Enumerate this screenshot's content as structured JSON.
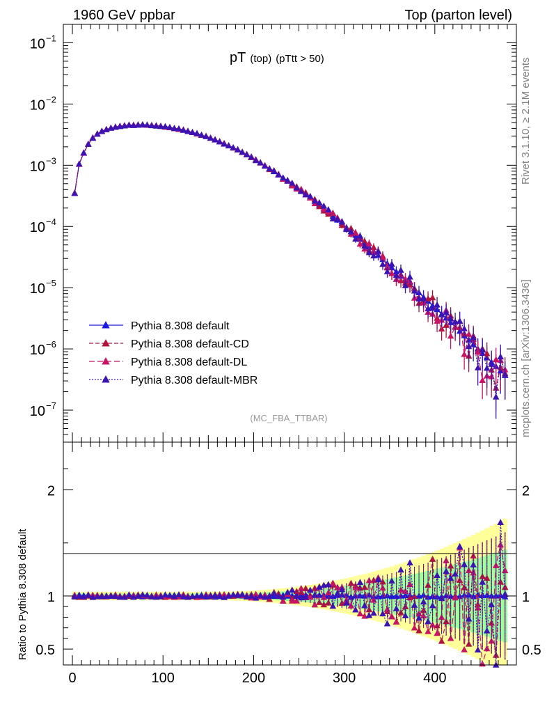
{
  "header": {
    "left": "1960 GeV ppbar",
    "right": "Top (parton level)"
  },
  "side_labels": {
    "rivet": "Rivet 3.1.10, ≥ 2.1M events",
    "mcplots": "mcplots.cern.ch [arXiv:1306.3436]"
  },
  "plot_title": {
    "main": "pT",
    "sub1": "(top)",
    "sub2": "(pTtt > 50)"
  },
  "analysis_id": "(MC_FBA_TTBAR)",
  "ratio_ylabel": "Ratio to Pythia 8.308 default",
  "colors": {
    "default": "#1a1adc",
    "cd": "#b0143c",
    "dl": "#c81464",
    "mbr": "#3c14b4",
    "band_yellow": "#ffff99",
    "band_green": "#99ff99"
  },
  "chart_data": [
    {
      "type": "line",
      "scale": "log",
      "xlim": [
        -10,
        490
      ],
      "ylim": [
        3e-08,
        0.2
      ],
      "y_ticks": [
        {
          "label": "10",
          "exp": "−1",
          "value": 0.1
        },
        {
          "label": "10",
          "exp": "−2",
          "value": 0.01
        },
        {
          "label": "10",
          "exp": "−3",
          "value": 0.001
        },
        {
          "label": "10",
          "exp": "−4",
          "value": 0.0001
        },
        {
          "label": "10",
          "exp": "−5",
          "value": 1e-05
        },
        {
          "label": "10",
          "exp": "−6",
          "value": 1e-06
        },
        {
          "label": "10",
          "exp": "−7",
          "value": 1e-07
        }
      ],
      "x": [
        2.5,
        7.5,
        12.5,
        17.5,
        22.5,
        27.5,
        32.5,
        37.5,
        42.5,
        47.5,
        52.5,
        57.5,
        62.5,
        67.5,
        72.5,
        77.5,
        82.5,
        87.5,
        92.5,
        97.5,
        102.5,
        107.5,
        112.5,
        117.5,
        122.5,
        127.5,
        132.5,
        137.5,
        142.5,
        147.5,
        152.5,
        157.5,
        162.5,
        167.5,
        172.5,
        177.5,
        182.5,
        187.5,
        192.5,
        197.5,
        202.5,
        207.5,
        212.5,
        217.5,
        222.5,
        227.5,
        232.5,
        237.5,
        242.5,
        247.5,
        252.5,
        257.5,
        262.5,
        267.5,
        272.5,
        277.5,
        282.5,
        287.5,
        292.5,
        297.5,
        302.5,
        307.5,
        312.5,
        317.5,
        322.5,
        327.5,
        332.5,
        337.5,
        342.5,
        347.5,
        352.5,
        357.5,
        362.5,
        367.5,
        372.5,
        377.5,
        382.5,
        387.5,
        392.5,
        397.5,
        402.5,
        407.5,
        412.5,
        417.5,
        422.5,
        427.5,
        432.5,
        437.5,
        442.5,
        447.5,
        452.5,
        457.5,
        462.5,
        467.5,
        472.5,
        477.5
      ],
      "series": [
        {
          "name": "Pythia 8.308 default",
          "color_key": "default",
          "dash": "",
          "values": [
            0.00035,
            0.00105,
            0.0016,
            0.0022,
            0.0028,
            0.00325,
            0.0036,
            0.00385,
            0.00405,
            0.0042,
            0.00435,
            0.00445,
            0.0045,
            0.00452,
            0.00455,
            0.00455,
            0.00452,
            0.00448,
            0.00442,
            0.00435,
            0.00425,
            0.00415,
            0.00402,
            0.0039,
            0.00375,
            0.00362,
            0.00345,
            0.0033,
            0.00312,
            0.00295,
            0.00278,
            0.0026,
            0.00242,
            0.00225,
            0.00208,
            0.00192,
            0.00178,
            0.00162,
            0.0015,
            0.00136,
            0.00122,
            0.0011,
            0.00098,
            0.00088,
            0.00079,
            0.0007,
            0.000625,
            0.00055,
            0.000485,
            0.00043,
            0.00038,
            0.000335,
            0.000295,
            0.000258,
            0.000225,
            0.000196,
            0.00017,
            0.000148,
            0.000128,
            0.000112,
            9.6e-05,
            8.3e-05,
            7.2e-05,
            6.2e-05,
            5.3e-05,
            4.6e-05,
            3.95e-05,
            3.4e-05,
            2.9e-05,
            2.48e-05,
            2.12e-05,
            1.82e-05,
            1.55e-05,
            1.33e-05,
            1.14e-05,
            9.7e-06,
            8.3e-06,
            7e-06,
            6e-06,
            5.1e-06,
            4.4e-06,
            3.7e-06,
            3.2e-06,
            2.7e-06,
            2.3e-06,
            1.95e-06,
            1.65e-06,
            1.4e-06,
            1.18e-06,
            1e-06,
            8.5e-07,
            7.2e-07,
            6.1e-07,
            5.2e-07,
            4.4e-07,
            3.7e-07
          ]
        }
      ]
    },
    {
      "type": "line",
      "ylim": [
        0.35,
        2.45
      ],
      "y_ticks": [
        0.5,
        1,
        2
      ],
      "x_ticks": [
        0,
        100,
        200,
        300,
        400
      ],
      "series": [
        {
          "name": "Pythia 8.308 default",
          "color_key": "default",
          "values_ref": "ratio_default"
        },
        {
          "name": "Pythia 8.308 default-CD",
          "color_key": "cd",
          "values_ref": "ratio_cd"
        },
        {
          "name": "Pythia 8.308 default-DL",
          "color_key": "dl",
          "values_ref": "ratio_dl"
        },
        {
          "name": "Pythia 8.308 default-MBR",
          "color_key": "mbr",
          "values_ref": "ratio_mbr"
        }
      ]
    }
  ],
  "legend": [
    {
      "label": "Pythia 8.308 default",
      "color_key": "default",
      "dash": ""
    },
    {
      "label": "Pythia 8.308 default-CD",
      "color_key": "cd",
      "dash": "6,3"
    },
    {
      "label": "Pythia 8.308 default-DL",
      "color_key": "dl",
      "dash": "8,4"
    },
    {
      "label": "Pythia 8.308 default-MBR",
      "color_key": "mbr",
      "dash": "2,2"
    }
  ],
  "x_tick_labels": [
    "0",
    "100",
    "200",
    "300",
    "400"
  ],
  "ratio_tick_labels": [
    "2",
    "1",
    "0.5"
  ]
}
